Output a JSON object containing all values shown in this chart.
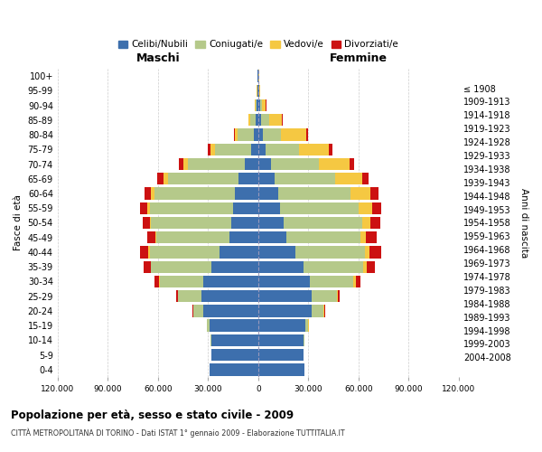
{
  "age_groups": [
    "0-4",
    "5-9",
    "10-14",
    "15-19",
    "20-24",
    "25-29",
    "30-34",
    "35-39",
    "40-44",
    "45-49",
    "50-54",
    "55-59",
    "60-64",
    "65-69",
    "70-74",
    "75-79",
    "80-84",
    "85-89",
    "90-94",
    "95-99",
    "100+"
  ],
  "birth_years": [
    "2004-2008",
    "1999-2003",
    "1994-1998",
    "1989-1993",
    "1984-1988",
    "1979-1983",
    "1974-1978",
    "1969-1973",
    "1964-1968",
    "1959-1963",
    "1954-1958",
    "1949-1953",
    "1944-1948",
    "1939-1943",
    "1934-1938",
    "1929-1933",
    "1924-1928",
    "1919-1923",
    "1914-1918",
    "1909-1913",
    "≤ 1908"
  ],
  "males": {
    "celibi": [
      29000,
      28000,
      28000,
      29000,
      33000,
      34000,
      33000,
      28000,
      23000,
      17000,
      16000,
      15000,
      14000,
      12000,
      8000,
      4000,
      2500,
      1500,
      800,
      400,
      200
    ],
    "coniugati": [
      50,
      100,
      300,
      1500,
      6000,
      14000,
      26000,
      36000,
      42000,
      44000,
      48000,
      50000,
      48000,
      42000,
      34000,
      22000,
      10000,
      3500,
      900,
      300,
      100
    ],
    "vedovi": [
      5,
      10,
      20,
      50,
      100,
      200,
      300,
      500,
      600,
      700,
      1000,
      1500,
      2200,
      2800,
      3000,
      2500,
      1500,
      800,
      300,
      100,
      50
    ],
    "divorziati": [
      5,
      10,
      30,
      100,
      400,
      1000,
      2500,
      4000,
      5000,
      4500,
      4000,
      4200,
      4000,
      3500,
      2500,
      1500,
      400,
      200,
      100,
      50,
      10
    ]
  },
  "females": {
    "nubili": [
      27500,
      27000,
      27000,
      28000,
      32000,
      32000,
      31000,
      27000,
      22000,
      17000,
      15000,
      13000,
      12000,
      10000,
      7500,
      4200,
      2800,
      1800,
      900,
      400,
      200
    ],
    "coniugate": [
      80,
      150,
      400,
      2000,
      7000,
      15000,
      26000,
      36000,
      42000,
      44000,
      47000,
      47000,
      43000,
      36000,
      29000,
      20000,
      11000,
      4500,
      1200,
      300,
      100
    ],
    "vedove": [
      8,
      15,
      30,
      100,
      300,
      700,
      1200,
      1800,
      2500,
      3500,
      5000,
      8000,
      12000,
      16000,
      18000,
      18000,
      15000,
      8000,
      2500,
      500,
      100
    ],
    "divorziate": [
      8,
      15,
      40,
      150,
      500,
      1200,
      3000,
      5000,
      7000,
      6500,
      5800,
      5500,
      5000,
      4000,
      3000,
      2000,
      1000,
      500,
      200,
      50,
      10
    ]
  },
  "colors": {
    "celibi_nubili": "#3d6fad",
    "coniugati": "#b5c98a",
    "vedovi": "#f5c842",
    "divorziati": "#cc1111"
  },
  "xlim": 120000,
  "title": "Popolazione per età, sesso e stato civile - 2009",
  "subtitle": "CITTÀ METROPOLITANA DI TORINO - Dati ISTAT 1° gennaio 2009 - Elaborazione TUTTITALIA.IT",
  "ylabel_left": "Fasce di età",
  "ylabel_right": "Anni di nascita",
  "label_maschi": "Maschi",
  "label_femmine": "Femmine",
  "legend_labels": [
    "Celibi/Nubili",
    "Coniugati/e",
    "Vedovi/e",
    "Divorziati/e"
  ],
  "background_color": "#ffffff",
  "grid_color": "#cccccc"
}
